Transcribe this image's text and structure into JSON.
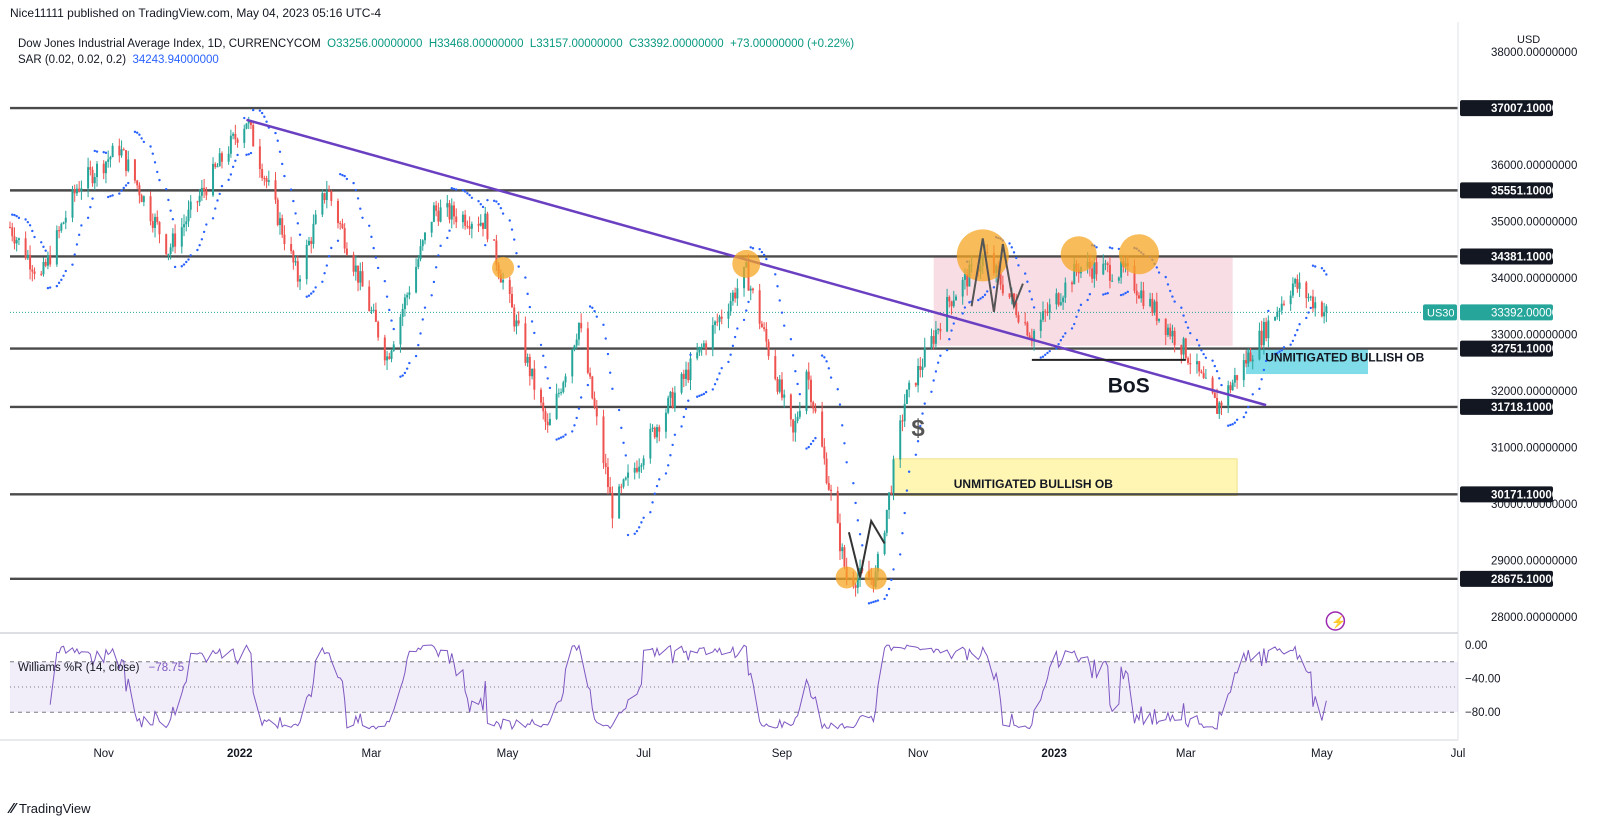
{
  "header": {
    "published": "Nice11111 published on TradingView.com, May 04, 2023 05:16 UTC-4"
  },
  "legend": {
    "symbol": "Dow Jones Industrial Average Index, 1D, CURRENCYCOM",
    "open": "O33256.00000000",
    "high": "H33468.00000000",
    "low": "L33157.00000000",
    "close": "C33392.00000000",
    "change": "+73.00000000 (+0.22%)",
    "sar_label": "SAR (0.02, 0.02, 0.2)",
    "sar_value": "34243.94000000"
  },
  "currency": "USD",
  "price_axis": {
    "ticks": [
      {
        "v": 38000,
        "label": "38000.00000000"
      },
      {
        "v": 36000,
        "label": "36000.00000000"
      },
      {
        "v": 35000,
        "label": "35000.00000000"
      },
      {
        "v": 34000,
        "label": "34000.00000000"
      },
      {
        "v": 33000,
        "label": "33000.00000000"
      },
      {
        "v": 32000,
        "label": "32000.00000000"
      },
      {
        "v": 31000,
        "label": "31000.00000000"
      },
      {
        "v": 30000,
        "label": "30000.00000000"
      },
      {
        "v": 29000,
        "label": "29000.00000000"
      },
      {
        "v": 28000,
        "label": "28000.00000000"
      }
    ],
    "current_symbol": "US30",
    "current_price": "33392.00000000",
    "current_value": 33392
  },
  "levels": [
    {
      "value": 37007.1,
      "label": "37007.10000000"
    },
    {
      "value": 35551.1,
      "label": "35551.10000000"
    },
    {
      "value": 34381.1,
      "label": "34381.10000000"
    },
    {
      "value": 32751.1,
      "label": "32751.10000000"
    },
    {
      "value": 31718.1,
      "label": "31718.10000000"
    },
    {
      "value": 30171.1,
      "label": "30171.10000000"
    },
    {
      "value": 28675.1,
      "label": "28675.10000000"
    }
  ],
  "annotations": {
    "ob_upper": "UNMITIGATED BULLISH OB",
    "ob_lower": "UNMITIGATED BULLISH OB",
    "bos": "BoS",
    "dollar": "$"
  },
  "time_axis": [
    {
      "label": "Nov",
      "bold": false
    },
    {
      "label": "2022",
      "bold": true
    },
    {
      "label": "Mar",
      "bold": false
    },
    {
      "label": "May",
      "bold": false
    },
    {
      "label": "Jul",
      "bold": false
    },
    {
      "label": "Sep",
      "bold": false
    },
    {
      "label": "Nov",
      "bold": false
    },
    {
      "label": "2023",
      "bold": true
    },
    {
      "label": "Mar",
      "bold": false
    },
    {
      "label": "May",
      "bold": false
    },
    {
      "label": "Jul",
      "bold": false
    }
  ],
  "williams": {
    "label": "Williams %R (14, close)",
    "value": "−78.75",
    "ticks": [
      {
        "v": 0,
        "label": "0.00"
      },
      {
        "v": -40,
        "label": "−40.00"
      },
      {
        "v": -80,
        "label": "−80.00"
      }
    ]
  },
  "footer": {
    "brand": "TradingView"
  },
  "colors": {
    "up": "#26a69a",
    "down": "#ef5350",
    "sar": "#2962ff",
    "trendline": "#6a3fc1",
    "level": "#4a4a4a",
    "wr": "#7e57c2",
    "pink_zone": "#f8d7e0",
    "ob_cyan": "#7fdce8",
    "ob_yellow": "#fff6b3",
    "orange_marker": "#f5a623"
  },
  "chart_data": {
    "type": "candlestick",
    "title": "Dow Jones Industrial Average Index, 1D, CURRENCYCOM",
    "xlabel": "",
    "ylabel": "USD",
    "ylim": [
      27600,
      38300
    ],
    "overlays": [
      "Parabolic SAR (0.02, 0.02, 0.2)",
      "Williams %R (14, close)"
    ],
    "price_path": [
      {
        "date": "2021-09-20",
        "close": 34900
      },
      {
        "date": "2021-10-04",
        "close": 34000
      },
      {
        "date": "2021-10-20",
        "close": 35600
      },
      {
        "date": "2021-11-08",
        "close": 36300
      },
      {
        "date": "2021-11-30",
        "close": 34500
      },
      {
        "date": "2021-12-27",
        "close": 36300
      },
      {
        "date": "2022-01-04",
        "close": 36800
      },
      {
        "date": "2022-01-27",
        "close": 34000
      },
      {
        "date": "2022-02-09",
        "close": 35600
      },
      {
        "date": "2022-03-08",
        "close": 32600
      },
      {
        "date": "2022-03-29",
        "close": 35200
      },
      {
        "date": "2022-04-21",
        "close": 35000
      },
      {
        "date": "2022-05-19",
        "close": 31300
      },
      {
        "date": "2022-06-02",
        "close": 33200
      },
      {
        "date": "2022-06-17",
        "close": 29900
      },
      {
        "date": "2022-07-07",
        "close": 31400
      },
      {
        "date": "2022-08-16",
        "close": 34100
      },
      {
        "date": "2022-09-06",
        "close": 31200
      },
      {
        "date": "2022-09-12",
        "close": 32400
      },
      {
        "date": "2022-09-30",
        "close": 28700
      },
      {
        "date": "2022-10-13",
        "close": 28700
      },
      {
        "date": "2022-10-26",
        "close": 31800
      },
      {
        "date": "2022-11-15",
        "close": 33600
      },
      {
        "date": "2022-12-01",
        "close": 34400
      },
      {
        "date": "2022-12-22",
        "close": 33000
      },
      {
        "date": "2023-01-12",
        "close": 34200
      },
      {
        "date": "2023-02-02",
        "close": 34100
      },
      {
        "date": "2023-03-01",
        "close": 32700
      },
      {
        "date": "2023-03-15",
        "close": 31700
      },
      {
        "date": "2023-04-18",
        "close": 33900
      },
      {
        "date": "2023-05-03",
        "close": 33392
      }
    ],
    "horizontal_levels": [
      37007.1,
      35551.1,
      34381.1,
      32751.1,
      31718.1,
      30171.1,
      28675.1
    ],
    "trendline": [
      {
        "date": "2022-01-04",
        "value": 36800
      },
      {
        "date": "2023-04-06",
        "value": 31750
      }
    ],
    "zones": [
      {
        "name": "UNMITIGATED BULLISH OB",
        "y": [
          32300,
          32750
        ]
      },
      {
        "name": "UNMITIGATED BULLISH OB",
        "y": [
          30150,
          30800
        ]
      }
    ],
    "williams_r_range": [
      -100,
      0
    ],
    "williams_r_last": -78.75
  }
}
